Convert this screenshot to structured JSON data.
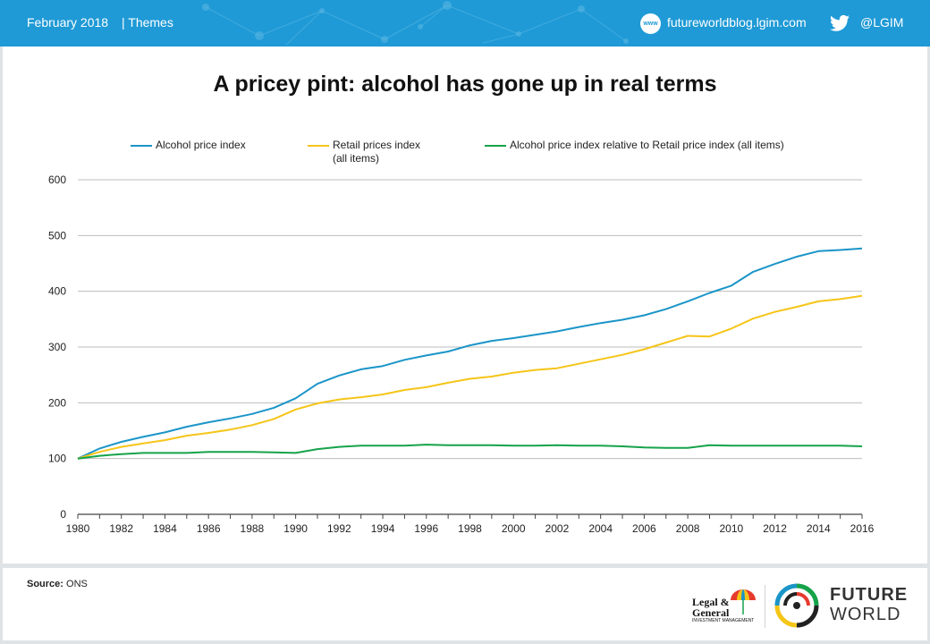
{
  "header": {
    "date": "February 2018",
    "section": "| Themes",
    "www_badge": "www",
    "blog_url": "futureworldblog.lgim.com",
    "twitter_handle": "@LGIM",
    "bg_color": "#1f9ad6"
  },
  "footer": {
    "source_label": "Source:",
    "source_value": "ONS",
    "lg_logo_line1": "Legal &",
    "lg_logo_line2": "General",
    "lg_logo_line3": "INVESTMENT MANAGEMENT",
    "fw_line1": "FUTURE",
    "fw_line2": "WORLD"
  },
  "chart_data": {
    "type": "line",
    "title": "A pricey pint: alcohol has gone up in real terms",
    "xlabel": "",
    "ylabel": "",
    "xlim": [
      1980,
      2016
    ],
    "ylim": [
      0,
      600
    ],
    "yticks": [
      0,
      100,
      200,
      300,
      400,
      500,
      600
    ],
    "xticks": [
      1980,
      1982,
      1984,
      1986,
      1988,
      1990,
      1992,
      1994,
      1996,
      1998,
      2000,
      2002,
      2004,
      2006,
      2008,
      2010,
      2012,
      2014,
      2016
    ],
    "grid": "horizontal",
    "legend_position": "top",
    "x": [
      1980,
      1981,
      1982,
      1983,
      1984,
      1985,
      1986,
      1987,
      1988,
      1989,
      1990,
      1991,
      1992,
      1993,
      1994,
      1995,
      1996,
      1997,
      1998,
      1999,
      2000,
      2001,
      2002,
      2003,
      2004,
      2005,
      2006,
      2007,
      2008,
      2009,
      2010,
      2011,
      2012,
      2013,
      2014,
      2015,
      2016
    ],
    "series": [
      {
        "name": "Alcohol price index",
        "color": "#1b95c8",
        "values": [
          100,
          118,
          130,
          139,
          147,
          157,
          165,
          172,
          180,
          191,
          208,
          234,
          249,
          260,
          266,
          277,
          285,
          292,
          303,
          311,
          316,
          322,
          328,
          336,
          343,
          349,
          357,
          368,
          382,
          397,
          410,
          435,
          449,
          462,
          472,
          474,
          477
        ]
      },
      {
        "name": "Retail prices index\n(all items)",
        "color": "#f5c518",
        "values": [
          100,
          112,
          121,
          127,
          133,
          141,
          146,
          152,
          160,
          171,
          188,
          199,
          206,
          210,
          215,
          223,
          228,
          236,
          243,
          247,
          254,
          259,
          262,
          270,
          278,
          286,
          296,
          308,
          320,
          319,
          333,
          351,
          363,
          372,
          382,
          386,
          392
        ]
      },
      {
        "name": "Alcohol price index relative to Retail price index (all items)",
        "color": "#16a34a",
        "values": [
          100,
          105,
          108,
          110,
          110,
          110,
          112,
          112,
          112,
          111,
          110,
          117,
          121,
          123,
          123,
          123,
          125,
          124,
          124,
          124,
          123,
          123,
          124,
          123,
          123,
          122,
          120,
          119,
          119,
          124,
          123,
          123,
          123,
          123,
          123,
          123,
          122
        ]
      }
    ]
  }
}
